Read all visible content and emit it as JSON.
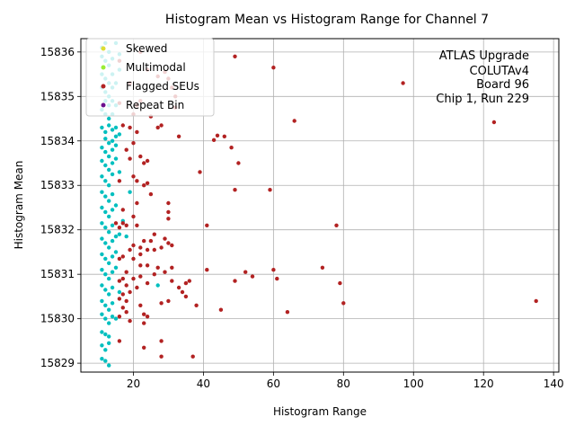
{
  "chart_data": {
    "type": "scatter",
    "title": "Histogram Mean vs Histogram Range for Channel 7",
    "xlabel": "Histogram Range",
    "ylabel": "Histogram Mean",
    "xlim": [
      5,
      141.5
    ],
    "ylim": [
      15828.8,
      15836.3
    ],
    "xticks": [
      20,
      40,
      60,
      80,
      100,
      120,
      140
    ],
    "yticks": [
      15829,
      15830,
      15831,
      15832,
      15833,
      15834,
      15835,
      15836
    ],
    "grid": true,
    "legend_position": "top-left",
    "annotation": [
      "ATLAS Upgrade",
      "COLUTAv4",
      "Board 96",
      "Chip 1, Run 229"
    ],
    "series": [
      {
        "name": "Skewed",
        "color": "#dddd33",
        "points": []
      },
      {
        "name": "Multimodal",
        "color": "#99ee33",
        "points": []
      },
      {
        "name": "Flagged SEUs",
        "color": "#b22222",
        "points": [
          [
            49,
            15835.9
          ],
          [
            60,
            15835.65
          ],
          [
            97,
            15835.3
          ],
          [
            66,
            15834.45
          ],
          [
            123,
            15834.42
          ],
          [
            33,
            15834.1
          ],
          [
            44,
            15834.12
          ],
          [
            46,
            15834.1
          ],
          [
            43,
            15834.02
          ],
          [
            48,
            15833.85
          ],
          [
            50,
            15833.5
          ],
          [
            39,
            15833.3
          ],
          [
            49,
            15832.9
          ],
          [
            59,
            15832.9
          ],
          [
            30,
            15832.6
          ],
          [
            30,
            15832.4
          ],
          [
            30,
            15832.25
          ],
          [
            41,
            15832.1
          ],
          [
            78,
            15832.1
          ],
          [
            20,
            15834.6
          ],
          [
            22,
            15834.9
          ],
          [
            25,
            15834.55
          ],
          [
            27,
            15834.3
          ],
          [
            28,
            15834.35
          ],
          [
            19,
            15834.3
          ],
          [
            21,
            15834.2
          ],
          [
            20,
            15833.95
          ],
          [
            18,
            15833.8
          ],
          [
            19,
            15833.6
          ],
          [
            22,
            15833.65
          ],
          [
            23,
            15833.5
          ],
          [
            24,
            15833.55
          ],
          [
            20,
            15833.2
          ],
          [
            21,
            15833.1
          ],
          [
            16,
            15833.1
          ],
          [
            23,
            15833.0
          ],
          [
            24,
            15833.05
          ],
          [
            25,
            15832.8
          ],
          [
            21,
            15832.6
          ],
          [
            17,
            15832.45
          ],
          [
            20,
            15832.3
          ],
          [
            16,
            15832.05
          ],
          [
            18,
            15832.1
          ],
          [
            21,
            15832.1
          ],
          [
            15,
            15832.15
          ],
          [
            17,
            15832.15
          ],
          [
            26,
            15831.9
          ],
          [
            29,
            15831.8
          ],
          [
            25,
            15831.75
          ],
          [
            23,
            15831.75
          ],
          [
            22,
            15831.6
          ],
          [
            20,
            15831.65
          ],
          [
            30,
            15831.7
          ],
          [
            31,
            15831.65
          ],
          [
            28,
            15831.6
          ],
          [
            19,
            15831.55
          ],
          [
            24,
            15831.55
          ],
          [
            26,
            15831.55
          ],
          [
            22,
            15831.45
          ],
          [
            17,
            15831.4
          ],
          [
            16,
            15831.35
          ],
          [
            20,
            15831.35
          ],
          [
            22,
            15831.2
          ],
          [
            24,
            15831.2
          ],
          [
            27,
            15831.15
          ],
          [
            31,
            15831.15
          ],
          [
            29,
            15831.05
          ],
          [
            18,
            15831.05
          ],
          [
            41,
            15831.1
          ],
          [
            52,
            15831.05
          ],
          [
            54,
            15830.95
          ],
          [
            60,
            15831.1
          ],
          [
            74,
            15831.15
          ],
          [
            61,
            15830.9
          ],
          [
            79,
            15830.8
          ],
          [
            49,
            15830.85
          ],
          [
            36,
            15830.85
          ],
          [
            35,
            15830.8
          ],
          [
            31,
            15830.85
          ],
          [
            26,
            15831.0
          ],
          [
            22,
            15830.95
          ],
          [
            20,
            15830.9
          ],
          [
            17,
            15830.9
          ],
          [
            16,
            15830.85
          ],
          [
            18,
            15830.75
          ],
          [
            24,
            15830.8
          ],
          [
            33,
            15830.7
          ],
          [
            34,
            15830.6
          ],
          [
            35,
            15830.5
          ],
          [
            21,
            15830.7
          ],
          [
            19,
            15830.6
          ],
          [
            17,
            15830.55
          ],
          [
            16,
            15830.45
          ],
          [
            18,
            15830.4
          ],
          [
            22,
            15830.3
          ],
          [
            28,
            15830.35
          ],
          [
            30,
            15830.4
          ],
          [
            38,
            15830.3
          ],
          [
            45,
            15830.2
          ],
          [
            64,
            15830.15
          ],
          [
            80,
            15830.35
          ],
          [
            135,
            15830.4
          ],
          [
            17,
            15830.25
          ],
          [
            18,
            15830.15
          ],
          [
            16,
            15830.05
          ],
          [
            23,
            15830.1
          ],
          [
            24,
            15830.05
          ],
          [
            19,
            15829.95
          ],
          [
            23,
            15829.9
          ],
          [
            28,
            15829.5
          ],
          [
            16,
            15829.5
          ],
          [
            23,
            15829.35
          ],
          [
            37,
            15829.15
          ],
          [
            28,
            15829.15
          ],
          [
            30,
            15835.4
          ],
          [
            32,
            15835.0
          ],
          [
            16,
            15835.8
          ],
          [
            22,
            15836.0
          ],
          [
            24,
            15835.6
          ],
          [
            27,
            15835.45
          ],
          [
            29,
            15835.55
          ],
          [
            31,
            15835.2
          ],
          [
            17,
            15834.35
          ],
          [
            21,
            15834.8
          ],
          [
            16,
            15834.85
          ],
          [
            19,
            15835.3
          ],
          [
            32,
            15834.75
          ]
        ]
      },
      {
        "name": "Repeat Bin",
        "color": "#6a0f8e",
        "points": []
      },
      {
        "name": "",
        "color": "#00bfbf",
        "points": [
          [
            11,
            15836.1
          ],
          [
            12,
            15836.2
          ],
          [
            13,
            15836.0
          ],
          [
            11,
            15835.9
          ],
          [
            12,
            15835.8
          ],
          [
            13,
            15835.7
          ],
          [
            14,
            15835.85
          ],
          [
            11,
            15835.5
          ],
          [
            12,
            15835.4
          ],
          [
            13,
            15835.3
          ],
          [
            14,
            15835.5
          ],
          [
            11,
            15835.2
          ],
          [
            12,
            15835.1
          ],
          [
            13,
            15835.0
          ],
          [
            14,
            15835.2
          ],
          [
            15,
            15835.3
          ],
          [
            12,
            15834.9
          ],
          [
            13,
            15834.8
          ],
          [
            14,
            15834.9
          ],
          [
            11,
            15834.7
          ],
          [
            12,
            15834.6
          ],
          [
            13,
            15834.5
          ],
          [
            14,
            15834.6
          ],
          [
            11,
            15834.3
          ],
          [
            12,
            15834.2
          ],
          [
            13,
            15834.35
          ],
          [
            14,
            15834.25
          ],
          [
            15,
            15834.3
          ],
          [
            12,
            15834.05
          ],
          [
            13,
            15833.95
          ],
          [
            14,
            15834.0
          ],
          [
            15,
            15834.1
          ],
          [
            11,
            15833.85
          ],
          [
            12,
            15833.75
          ],
          [
            13,
            15833.65
          ],
          [
            14,
            15833.8
          ],
          [
            11,
            15833.55
          ],
          [
            12,
            15833.45
          ],
          [
            13,
            15833.35
          ],
          [
            14,
            15833.5
          ],
          [
            15,
            15833.6
          ],
          [
            11,
            15833.2
          ],
          [
            12,
            15833.1
          ],
          [
            13,
            15833.0
          ],
          [
            14,
            15833.25
          ],
          [
            11,
            15832.85
          ],
          [
            12,
            15832.75
          ],
          [
            13,
            15832.65
          ],
          [
            14,
            15832.8
          ],
          [
            11,
            15832.5
          ],
          [
            12,
            15832.4
          ],
          [
            13,
            15832.3
          ],
          [
            14,
            15832.45
          ],
          [
            11,
            15832.15
          ],
          [
            12,
            15832.05
          ],
          [
            13,
            15831.95
          ],
          [
            14,
            15832.1
          ],
          [
            11,
            15831.8
          ],
          [
            12,
            15831.7
          ],
          [
            13,
            15831.6
          ],
          [
            14,
            15831.75
          ],
          [
            15,
            15831.85
          ],
          [
            11,
            15831.45
          ],
          [
            12,
            15831.35
          ],
          [
            13,
            15831.25
          ],
          [
            14,
            15831.4
          ],
          [
            11,
            15831.1
          ],
          [
            12,
            15831.0
          ],
          [
            13,
            15830.9
          ],
          [
            14,
            15831.05
          ],
          [
            15,
            15831.15
          ],
          [
            11,
            15830.75
          ],
          [
            12,
            15830.65
          ],
          [
            13,
            15830.55
          ],
          [
            14,
            15830.7
          ],
          [
            11,
            15830.4
          ],
          [
            12,
            15830.3
          ],
          [
            13,
            15830.2
          ],
          [
            14,
            15830.35
          ],
          [
            11,
            15830.1
          ],
          [
            12,
            15830.0
          ],
          [
            13,
            15829.9
          ],
          [
            14,
            15830.05
          ],
          [
            11,
            15829.7
          ],
          [
            12,
            15829.65
          ],
          [
            13,
            15829.6
          ],
          [
            11,
            15829.4
          ],
          [
            12,
            15829.3
          ],
          [
            13,
            15829.45
          ],
          [
            11,
            15829.1
          ],
          [
            12,
            15829.05
          ],
          [
            13,
            15828.95
          ],
          [
            15,
            15836.2
          ],
          [
            16,
            15835.95
          ],
          [
            16,
            15835.6
          ],
          [
            15,
            15834.8
          ],
          [
            16,
            15834.15
          ],
          [
            15,
            15833.9
          ],
          [
            16,
            15833.3
          ],
          [
            15,
            15832.55
          ],
          [
            16,
            15831.9
          ],
          [
            15,
            15831.5
          ],
          [
            16,
            15830.6
          ],
          [
            15,
            15830.0
          ],
          [
            27,
            15830.75
          ],
          [
            19,
            15832.85
          ],
          [
            18,
            15831.85
          ],
          [
            17,
            15832.2
          ]
        ]
      }
    ]
  }
}
